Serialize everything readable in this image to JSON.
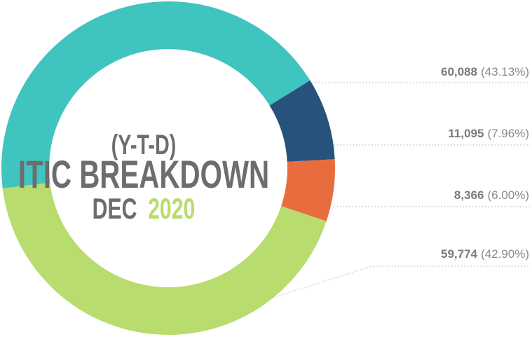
{
  "chart_data": {
    "type": "donut",
    "title_lines": [
      "(Y-T-D)",
      "ITIC BREAKDOWN"
    ],
    "subtitle_parts": [
      "DEC",
      "2020"
    ],
    "subtitle_colors": [
      "#6c6d6f",
      "#b8dc6e"
    ],
    "values": [
      60088,
      11095,
      8366,
      59774
    ],
    "value_labels": [
      "60,088",
      "11,095",
      "8,366",
      "59,774"
    ],
    "percent_labels": [
      "(43.13%)",
      "(7.96%)",
      "(6.00%)",
      "(42.90%)"
    ],
    "colors": [
      "#3fc4c0",
      "#27527c",
      "#e96c3e",
      "#b8dc6e"
    ]
  }
}
